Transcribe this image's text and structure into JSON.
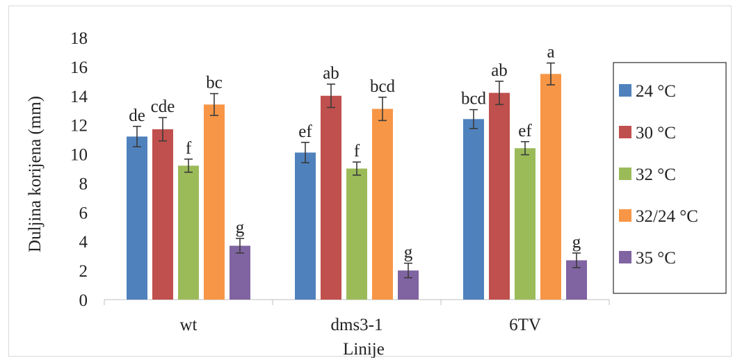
{
  "chart_data": {
    "type": "bar",
    "title": "",
    "xlabel": "Linije",
    "ylabel": "Duljina korijena (mm)",
    "ylim": [
      0,
      18
    ],
    "yticks": [
      0,
      2,
      4,
      6,
      8,
      10,
      12,
      14,
      16,
      18
    ],
    "grid": false,
    "legend": "right",
    "categories": [
      "wt",
      "dms3-1",
      "6TV"
    ],
    "series": [
      {
        "name": "24 °C",
        "color": "#4f81bd",
        "values": [
          11.2,
          10.1,
          12.4
        ],
        "errors": [
          0.7,
          0.7,
          0.65
        ],
        "letters": [
          "de",
          "ef",
          "bcd"
        ]
      },
      {
        "name": "30 °C",
        "color": "#c0504d",
        "values": [
          11.7,
          14.0,
          14.2
        ],
        "errors": [
          0.8,
          0.8,
          0.8
        ],
        "letters": [
          "cde",
          "ab",
          "ab"
        ]
      },
      {
        "name": "32 °C",
        "color": "#9bbb59",
        "values": [
          9.2,
          9.0,
          10.4
        ],
        "errors": [
          0.45,
          0.45,
          0.45
        ],
        "letters": [
          "f",
          "f",
          "ef"
        ]
      },
      {
        "name": "32/24 °C",
        "color": "#f79646",
        "values": [
          13.4,
          13.1,
          15.5
        ],
        "errors": [
          0.75,
          0.8,
          0.75
        ],
        "letters": [
          "bc",
          "bcd",
          "a"
        ]
      },
      {
        "name": "35 °C",
        "color": "#8064a2",
        "values": [
          3.7,
          2.0,
          2.7
        ],
        "errors": [
          0.5,
          0.5,
          0.5
        ],
        "letters": [
          "g",
          "g",
          "g"
        ]
      }
    ]
  }
}
